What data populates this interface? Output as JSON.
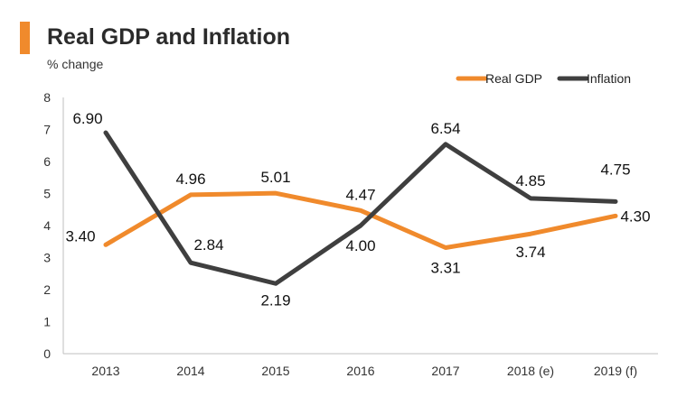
{
  "header": {
    "title": "Real GDP and Inflation",
    "subtitle": "% change",
    "accent_color": "#f08a2c"
  },
  "chart_data": {
    "type": "line",
    "title": "Real GDP and Inflation",
    "ylabel": "% change",
    "xlabel": "",
    "categories": [
      "2013",
      "2014",
      "2015",
      "2016",
      "2017",
      "2018 (e)",
      "2019 (f)"
    ],
    "ylim": [
      0,
      8
    ],
    "yticks": [
      0,
      1,
      2,
      3,
      4,
      5,
      6,
      7,
      8
    ],
    "grid": false,
    "legend_position": "top-right",
    "series": [
      {
        "name": "Real GDP",
        "color": "#f08a2c",
        "values": [
          3.4,
          4.96,
          5.01,
          4.47,
          3.31,
          3.74,
          4.3
        ],
        "labels": [
          "3.40",
          "4.96",
          "5.01",
          "4.47",
          "3.31",
          "3.74",
          "4.30"
        ]
      },
      {
        "name": "Inflation",
        "color": "#3f3f3f",
        "values": [
          6.9,
          2.84,
          2.19,
          4.0,
          6.54,
          4.85,
          4.75
        ],
        "labels": [
          "6.90",
          "2.84",
          "2.19",
          "4.00",
          "6.54",
          "4.85",
          "4.75"
        ]
      }
    ]
  }
}
